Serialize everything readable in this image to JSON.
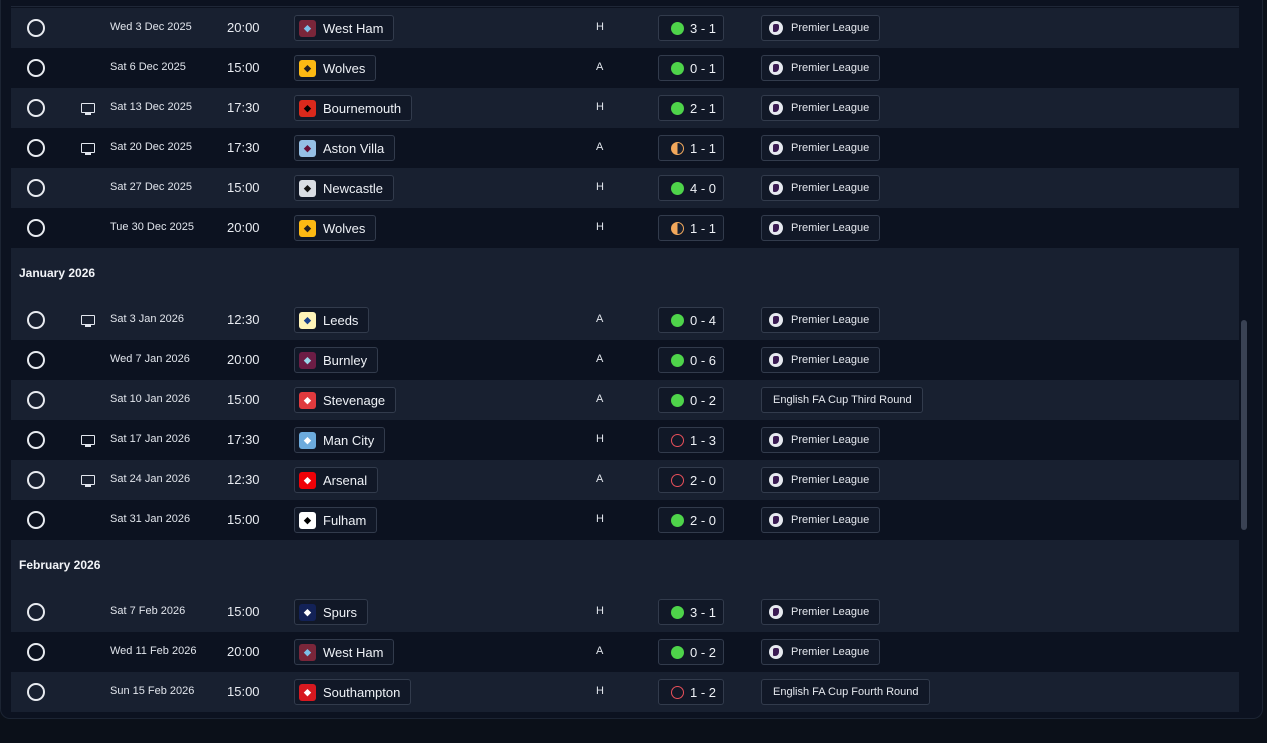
{
  "months": [
    {
      "label": "",
      "fixtures": [
        {
          "tv": false,
          "date": "Wed 3 Dec 2025",
          "time": "20:00",
          "team": "West Ham",
          "crest": {
            "bg": "#7a263a",
            "fg": "#7cc0e8",
            "icon": "west-ham-crest-icon"
          },
          "venue": "H",
          "result": "W",
          "score": "3 - 1",
          "competition": "Premier League",
          "cup": false
        },
        {
          "tv": false,
          "date": "Sat 6 Dec 2025",
          "time": "15:00",
          "team": "Wolves",
          "crest": {
            "bg": "#fdb913",
            "fg": "#231f20",
            "icon": "wolves-crest-icon"
          },
          "venue": "A",
          "result": "W",
          "score": "0 - 1",
          "competition": "Premier League",
          "cup": false
        },
        {
          "tv": true,
          "date": "Sat 13 Dec 2025",
          "time": "17:30",
          "team": "Bournemouth",
          "crest": {
            "bg": "#da291c",
            "fg": "#000000",
            "icon": "bournemouth-crest-icon"
          },
          "venue": "H",
          "result": "W",
          "score": "2 - 1",
          "competition": "Premier League",
          "cup": false
        },
        {
          "tv": true,
          "date": "Sat 20 Dec 2025",
          "time": "17:30",
          "team": "Aston Villa",
          "crest": {
            "bg": "#95bfe5",
            "fg": "#670e36",
            "icon": "aston-villa-crest-icon"
          },
          "venue": "A",
          "result": "D",
          "score": "1 - 1",
          "competition": "Premier League",
          "cup": false
        },
        {
          "tv": false,
          "date": "Sat 27 Dec 2025",
          "time": "15:00",
          "team": "Newcastle",
          "crest": {
            "bg": "#d9dde3",
            "fg": "#111111",
            "icon": "newcastle-crest-icon"
          },
          "venue": "H",
          "result": "W",
          "score": "4 - 0",
          "competition": "Premier League",
          "cup": false
        },
        {
          "tv": false,
          "date": "Tue 30 Dec 2025",
          "time": "20:00",
          "team": "Wolves",
          "crest": {
            "bg": "#fdb913",
            "fg": "#231f20",
            "icon": "wolves-crest-icon"
          },
          "venue": "H",
          "result": "D",
          "score": "1 - 1",
          "competition": "Premier League",
          "cup": false
        }
      ]
    },
    {
      "label": "January 2026",
      "fixtures": [
        {
          "tv": true,
          "date": "Sat 3 Jan 2026",
          "time": "12:30",
          "team": "Leeds",
          "crest": {
            "bg": "#fff4b8",
            "fg": "#1d428a",
            "icon": "leeds-crest-icon"
          },
          "venue": "A",
          "result": "W",
          "score": "0 - 4",
          "competition": "Premier League",
          "cup": false
        },
        {
          "tv": false,
          "date": "Wed 7 Jan 2026",
          "time": "20:00",
          "team": "Burnley",
          "crest": {
            "bg": "#6c1d45",
            "fg": "#99d6ea",
            "icon": "burnley-crest-icon"
          },
          "venue": "A",
          "result": "W",
          "score": "0 - 6",
          "competition": "Premier League",
          "cup": false
        },
        {
          "tv": false,
          "date": "Sat 10 Jan 2026",
          "time": "15:00",
          "team": "Stevenage",
          "crest": {
            "bg": "#e03a3e",
            "fg": "#ffffff",
            "icon": "stevenage-crest-icon"
          },
          "venue": "A",
          "result": "W",
          "score": "0 - 2",
          "competition": "English FA Cup Third Round",
          "cup": true
        },
        {
          "tv": true,
          "date": "Sat 17 Jan 2026",
          "time": "17:30",
          "team": "Man City",
          "crest": {
            "bg": "#6cabdd",
            "fg": "#ffffff",
            "icon": "man-city-crest-icon"
          },
          "venue": "H",
          "result": "L",
          "score": "1 - 3",
          "competition": "Premier League",
          "cup": false
        },
        {
          "tv": true,
          "date": "Sat 24 Jan 2026",
          "time": "12:30",
          "team": "Arsenal",
          "crest": {
            "bg": "#ef0107",
            "fg": "#ffffff",
            "icon": "arsenal-crest-icon"
          },
          "venue": "A",
          "result": "L",
          "score": "2 - 0",
          "competition": "Premier League",
          "cup": false
        },
        {
          "tv": false,
          "date": "Sat 31 Jan 2026",
          "time": "15:00",
          "team": "Fulham",
          "crest": {
            "bg": "#ffffff",
            "fg": "#000000",
            "icon": "fulham-crest-icon"
          },
          "venue": "H",
          "result": "W",
          "score": "2 - 0",
          "competition": "Premier League",
          "cup": false
        }
      ]
    },
    {
      "label": "February 2026",
      "fixtures": [
        {
          "tv": false,
          "date": "Sat 7 Feb 2026",
          "time": "15:00",
          "team": "Spurs",
          "crest": {
            "bg": "#132257",
            "fg": "#ffffff",
            "icon": "spurs-crest-icon"
          },
          "venue": "H",
          "result": "W",
          "score": "3 - 1",
          "competition": "Premier League",
          "cup": false
        },
        {
          "tv": false,
          "date": "Wed 11 Feb 2026",
          "time": "20:00",
          "team": "West Ham",
          "crest": {
            "bg": "#7a263a",
            "fg": "#7cc0e8",
            "icon": "west-ham-crest-icon"
          },
          "venue": "A",
          "result": "W",
          "score": "0 - 2",
          "competition": "Premier League",
          "cup": false
        },
        {
          "tv": false,
          "date": "Sun 15 Feb 2026",
          "time": "15:00",
          "team": "Southampton",
          "crest": {
            "bg": "#d71920",
            "fg": "#ffffff",
            "icon": "southampton-crest-icon"
          },
          "venue": "H",
          "result": "L",
          "score": "1 - 2",
          "competition": "English FA Cup Fourth Round",
          "cup": true
        }
      ]
    }
  ]
}
